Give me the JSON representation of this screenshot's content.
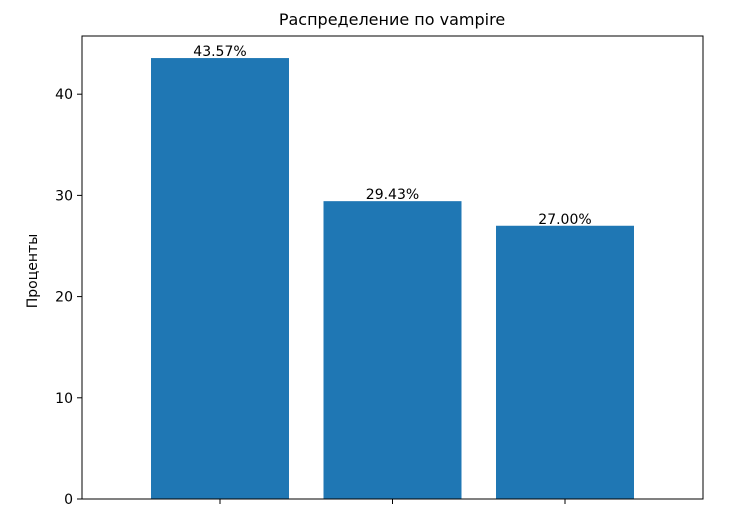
{
  "chart_data": {
    "type": "bar",
    "title": "Распределение по vampire",
    "xlabel": "",
    "ylabel": "Проценты",
    "categories": [
      "",
      "",
      ""
    ],
    "values": [
      43.57,
      29.43,
      27.0
    ],
    "data_labels": [
      "43.57%",
      "29.43%",
      "27.00%"
    ],
    "ylim": [
      0,
      45.75
    ],
    "yticks": [
      0,
      10,
      20,
      30,
      40
    ],
    "ytick_labels": [
      "0",
      "10",
      "20",
      "30",
      "40"
    ],
    "grid": false,
    "legend": "none",
    "bar_color": "#1f77b4"
  }
}
